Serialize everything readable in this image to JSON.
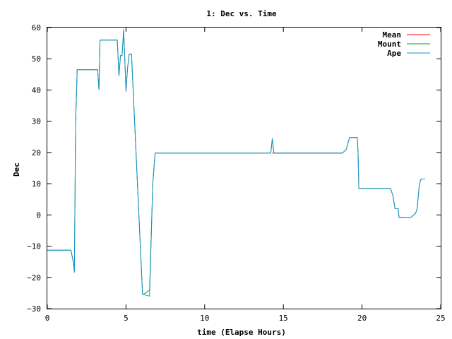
{
  "chart_data": {
    "type": "line",
    "title": "1: Dec vs. Time",
    "xlabel": "time (Elapse Hours)",
    "ylabel": "Dec",
    "xlim": [
      0,
      25
    ],
    "ylim": [
      -30,
      60
    ],
    "xticks": [
      0,
      5,
      10,
      15,
      20,
      25
    ],
    "yticks": [
      -30,
      -20,
      -10,
      0,
      10,
      20,
      30,
      40,
      50,
      60
    ],
    "grid": false,
    "legend_position": "top-right",
    "series": [
      {
        "name": "Mean",
        "color": "#ff0000",
        "x": [
          14.3,
          18.75,
          null,
          22.35,
          22.7,
          null,
          23.75,
          24.0
        ],
        "y": [
          19.8,
          19.8,
          null,
          -0.8,
          -0.8,
          null,
          11.5,
          11.5
        ]
      },
      {
        "name": "Mount",
        "color": "#00a000",
        "x": [
          0.0,
          1.5,
          1.65,
          1.72,
          1.8,
          1.9,
          2.05,
          3.2,
          3.28,
          3.35,
          4.45,
          4.55,
          4.65,
          4.75,
          4.85,
          5.0,
          5.1,
          5.2,
          5.3,
          5.35,
          6.05,
          6.1,
          6.5,
          6.7,
          6.85,
          14.2,
          14.3,
          14.4,
          18.75,
          19.0,
          19.2,
          19.7,
          19.75,
          19.8,
          21.8,
          21.95,
          22.1,
          22.3,
          22.35,
          22.7,
          23.1,
          23.4,
          23.5,
          23.65,
          23.75,
          24.0
        ],
        "y": [
          -11.3,
          -11.3,
          -15.0,
          -18.0,
          30.0,
          46.5,
          46.5,
          46.5,
          40.0,
          56.0,
          56.0,
          44.5,
          51.0,
          51.0,
          59.0,
          40.0,
          47.0,
          51.5,
          51.5,
          51.5,
          -25.3,
          -25.5,
          -24.0,
          10.0,
          19.8,
          19.8,
          24.5,
          19.8,
          19.8,
          21.0,
          24.8,
          24.8,
          20.0,
          8.5,
          8.5,
          6.5,
          2.0,
          2.0,
          -0.8,
          -0.8,
          -0.8,
          0.5,
          2.0,
          10.0,
          11.5,
          11.5
        ]
      },
      {
        "name": "Ape",
        "color": "#1f8fd0",
        "x": [
          0.0,
          1.5,
          1.65,
          1.72,
          1.8,
          1.9,
          2.05,
          3.2,
          3.28,
          3.35,
          4.45,
          4.55,
          4.65,
          4.75,
          4.85,
          5.0,
          5.1,
          5.2,
          5.3,
          5.35,
          6.05,
          6.1,
          6.5,
          6.7,
          6.85,
          14.2,
          14.3,
          14.4,
          18.75,
          19.0,
          19.2,
          19.7,
          19.75,
          19.8,
          21.8,
          21.95,
          22.1,
          22.3,
          22.35,
          22.7,
          23.1,
          23.4,
          23.5,
          23.65,
          23.75,
          24.0
        ],
        "y": [
          -11.3,
          -11.3,
          -15.0,
          -18.5,
          30.0,
          46.5,
          46.5,
          46.5,
          40.0,
          56.0,
          56.0,
          44.5,
          51.0,
          51.0,
          59.5,
          39.5,
          47.0,
          51.5,
          51.5,
          51.5,
          -25.3,
          -25.5,
          -26.0,
          10.0,
          19.8,
          19.8,
          24.5,
          19.8,
          19.8,
          21.0,
          24.8,
          24.8,
          20.0,
          8.5,
          8.5,
          6.5,
          2.0,
          2.0,
          -0.8,
          -0.8,
          -0.8,
          0.5,
          2.0,
          10.0,
          11.5,
          11.5
        ]
      }
    ]
  }
}
